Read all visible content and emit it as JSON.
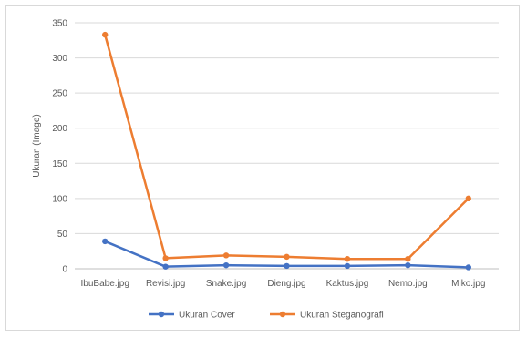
{
  "chart_data": {
    "type": "line",
    "title": "",
    "xlabel": "",
    "ylabel": "Ukuran (Image)",
    "ylim": [
      0,
      350
    ],
    "yticks": [
      0,
      50,
      100,
      150,
      200,
      250,
      300,
      350
    ],
    "categories": [
      "IbuBabe.jpg",
      "Revisi.jpg",
      "Snake.jpg",
      "Dieng.jpg",
      "Kaktus.jpg",
      "Nemo.jpg",
      "Miko.jpg"
    ],
    "series": [
      {
        "name": "Ukuran Cover",
        "color": "#4472C4",
        "values": [
          39,
          3,
          5,
          4,
          4,
          5,
          2
        ]
      },
      {
        "name": "Ukuran Steganografi",
        "color": "#ED7D31",
        "values": [
          333,
          15,
          19,
          17,
          14,
          14,
          100
        ]
      }
    ],
    "grid": true,
    "legend_position": "bottom"
  }
}
